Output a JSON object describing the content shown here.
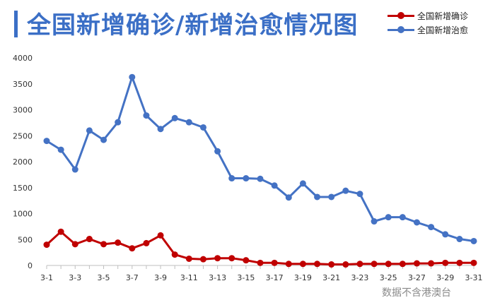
{
  "header": {
    "title": "全国新增确诊/新增治愈情况图"
  },
  "legend": {
    "items": [
      {
        "label": "全国新增确诊",
        "color": "#c00000"
      },
      {
        "label": "全国新增治愈",
        "color": "#4472c4"
      }
    ]
  },
  "footer": {
    "source": "数据不含港澳台"
  },
  "chart_data": {
    "type": "line",
    "title": "全国新增确诊/新增治愈情况图",
    "xlabel": "",
    "ylabel": "",
    "ylim": [
      0,
      4000
    ],
    "yticks": [
      0,
      500,
      1000,
      1500,
      2000,
      2500,
      3000,
      3500,
      4000
    ],
    "grid": false,
    "legend_position": "top-right",
    "x": [
      "3-1",
      "3-2",
      "3-3",
      "3-4",
      "3-5",
      "3-6",
      "3-7",
      "3-8",
      "3-9",
      "3-10",
      "3-11",
      "3-12",
      "3-13",
      "3-14",
      "3-15",
      "3-16",
      "3-17",
      "3-18",
      "3-19",
      "3-20",
      "3-21",
      "3-22",
      "3-23",
      "3-24",
      "3-25",
      "3-26",
      "3-27",
      "3-28",
      "3-29",
      "3-30",
      "3-31"
    ],
    "xtick_labels": [
      "3-1",
      "3-3",
      "3-5",
      "3-7",
      "3-9",
      "3-11",
      "3-13",
      "3-15",
      "3-17",
      "3-19",
      "3-21",
      "3-23",
      "3-25",
      "3-27",
      "3-29",
      "3-31"
    ],
    "series": [
      {
        "name": "全国新增确诊",
        "color": "#c00000",
        "values": [
          400,
          650,
          410,
          510,
          410,
          440,
          330,
          430,
          580,
          210,
          130,
          120,
          140,
          140,
          100,
          50,
          50,
          30,
          30,
          30,
          20,
          20,
          30,
          30,
          30,
          30,
          40,
          40,
          50,
          50,
          50
        ]
      },
      {
        "name": "全国新增治愈",
        "color": "#4472c4",
        "values": [
          2400,
          2230,
          1850,
          2600,
          2420,
          2760,
          3630,
          2890,
          2630,
          2840,
          2760,
          2660,
          2200,
          1680,
          1680,
          1670,
          1540,
          1310,
          1580,
          1320,
          1320,
          1440,
          1380,
          850,
          930,
          930,
          830,
          740,
          600,
          510,
          470
        ]
      }
    ]
  }
}
